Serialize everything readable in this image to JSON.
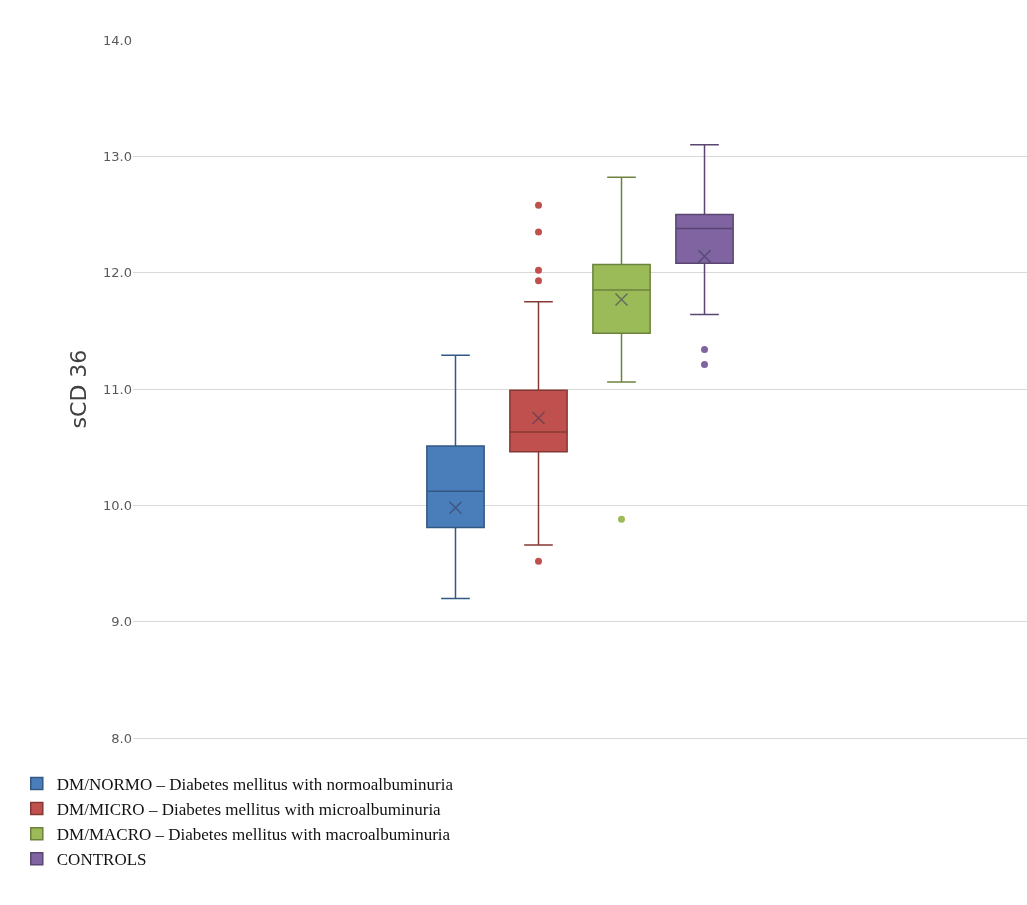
{
  "chart_data": {
    "type": "box",
    "ylabel": "sCD 36",
    "categories": [
      null
    ],
    "ylim": [
      8.0,
      14.0
    ],
    "yticks": [
      {
        "value": 8,
        "label": "8.0"
      },
      {
        "value": 9,
        "label": "9.0"
      },
      {
        "value": 10,
        "label": "10.0"
      },
      {
        "value": 11,
        "label": "11.0"
      },
      {
        "value": 12,
        "label": "12.0"
      },
      {
        "value": 13,
        "label": "13.0"
      },
      {
        "value": 14,
        "label": "14.0"
      }
    ],
    "grid": "y",
    "legend": "bottom",
    "tick_labels": "y",
    "series": [
      {
        "name": "DM/NORMO – Diabetes mellitus with normoalbuminuria",
        "color": "#4a7ebb",
        "boxes": [
          {
            "low": 9.2,
            "q1": 9.81,
            "median": 10.12,
            "q3": 10.51,
            "high": 11.29,
            "mean": 9.98
          }
        ]
      },
      {
        "name": "DM/MICRO – Diabetes mellitus with microalbuminuria",
        "color": "#c0504d",
        "boxes": [
          {
            "low": 9.66,
            "q1": 10.46,
            "median": 10.63,
            "q3": 10.99,
            "high": 11.75,
            "mean": 10.75,
            "outliers": [
              12.58,
              12.35,
              12.02,
              11.93,
              9.52
            ]
          }
        ]
      },
      {
        "name": "DM/MACRO – Diabetes mellitus with macroalbuminuria",
        "color": "#9bbb59",
        "boxes": [
          {
            "low": 11.06,
            "q1": 11.48,
            "median": 11.85,
            "q3": 12.07,
            "high": 12.82,
            "mean": 11.77,
            "outliers": [
              9.88
            ]
          }
        ]
      },
      {
        "name": "CONTROLS",
        "color": "#8064a2",
        "boxes": [
          {
            "low": 11.64,
            "q1": 12.08,
            "median": 12.38,
            "q3": 12.5,
            "high": 13.1,
            "mean": 12.14,
            "outliers": [
              11.34,
              11.21
            ]
          }
        ]
      }
    ]
  }
}
